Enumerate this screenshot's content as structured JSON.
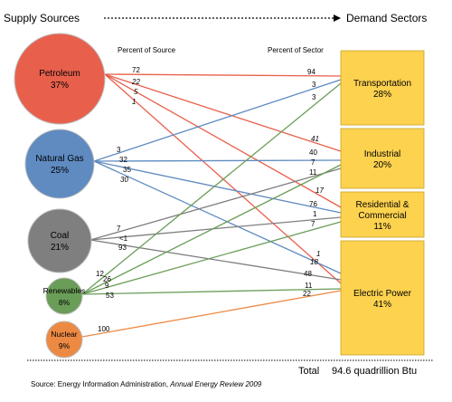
{
  "header": {
    "left": "Supply Sources",
    "right": "Demand Sectors",
    "percent_source": "Percent of Source",
    "percent_sector": "Percent of Sector"
  },
  "sources": [
    {
      "id": "petroleum",
      "name": "Petroleum",
      "pct": "37%",
      "color": "#e8604c"
    },
    {
      "id": "natural_gas",
      "name": "Natural Gas",
      "pct": "25%",
      "color": "#5f8bc1"
    },
    {
      "id": "coal",
      "name": "Coal",
      "pct": "21%",
      "color": "#7f7f7f"
    },
    {
      "id": "renewables",
      "name": "Renewables",
      "pct": "8%",
      "color": "#6a9d58"
    },
    {
      "id": "nuclear",
      "name": "Nuclear",
      "pct": "9%",
      "color": "#ec8a44"
    }
  ],
  "sectors": [
    {
      "id": "transportation",
      "line1": "Transportation",
      "line2": "",
      "pct": "28%"
    },
    {
      "id": "industrial",
      "line1": "Industrial",
      "line2": "",
      "pct": "20%"
    },
    {
      "id": "residential",
      "line1": "Residential &",
      "line2": "Commercial",
      "pct": "11%"
    },
    {
      "id": "electric",
      "line1": "Electric Power",
      "line2": "",
      "pct": "41%"
    }
  ],
  "sector_color": "#fdd24f",
  "flows": [
    {
      "from": "petroleum",
      "to": "transportation",
      "source_pct": "72",
      "sector_pct": "94",
      "italic": false
    },
    {
      "from": "petroleum",
      "to": "industrial",
      "source_pct": "22",
      "sector_pct": "41",
      "italic": true
    },
    {
      "from": "petroleum",
      "to": "residential",
      "source_pct": "5",
      "sector_pct": "17",
      "italic": true
    },
    {
      "from": "petroleum",
      "to": "electric",
      "source_pct": "1",
      "sector_pct": "1",
      "italic": true
    },
    {
      "from": "natural_gas",
      "to": "transportation",
      "source_pct": "3",
      "sector_pct": "3",
      "italic": false
    },
    {
      "from": "natural_gas",
      "to": "industrial",
      "source_pct": "32",
      "sector_pct": "40",
      "italic": false
    },
    {
      "from": "natural_gas",
      "to": "residential",
      "source_pct": "35",
      "sector_pct": "76",
      "italic": false
    },
    {
      "from": "natural_gas",
      "to": "electric",
      "source_pct": "30",
      "sector_pct": "18",
      "italic": true
    },
    {
      "from": "coal",
      "to": "industrial",
      "source_pct": "7",
      "sector_pct": "7",
      "italic": false
    },
    {
      "from": "coal",
      "to": "residential",
      "source_pct": "<1",
      "sector_pct": "1",
      "italic": false
    },
    {
      "from": "coal",
      "to": "electric",
      "source_pct": "93",
      "sector_pct": "48",
      "italic": false
    },
    {
      "from": "renewables",
      "to": "transportation",
      "source_pct": "12",
      "sector_pct": "3",
      "italic": false
    },
    {
      "from": "renewables",
      "to": "industrial",
      "source_pct": "26",
      "sector_pct": "11",
      "italic": false
    },
    {
      "from": "renewables",
      "to": "residential",
      "source_pct": "9",
      "sector_pct": "7",
      "italic": false
    },
    {
      "from": "renewables",
      "to": "electric",
      "source_pct": "53",
      "sector_pct": "11",
      "italic": false
    },
    {
      "from": "nuclear",
      "to": "electric",
      "source_pct": "100",
      "sector_pct": "22",
      "italic": false
    }
  ],
  "footer": {
    "total_label": "Total",
    "total_value": "94.6 quadrillion Btu",
    "source_prefix": "Source:  Energy Information Administration, ",
    "source_title": "Annual Energy Review 2009"
  }
}
